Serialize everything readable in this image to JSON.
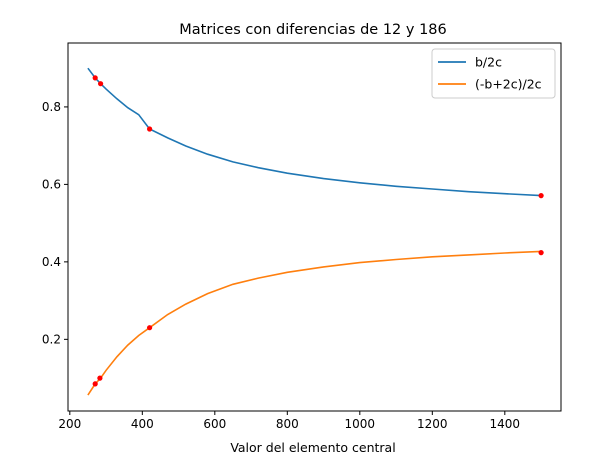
{
  "chart_data": {
    "type": "line",
    "title": "Matrices con diferencias de 12 y 186",
    "xlabel": "Valor del elemento central",
    "ylabel": "",
    "xlim": [
      195,
      1555
    ],
    "ylim": [
      0.015,
      0.965
    ],
    "xticks": [
      200,
      400,
      600,
      800,
      1000,
      1200,
      1400
    ],
    "yticks": [
      0.2,
      0.4,
      0.6,
      0.8
    ],
    "xtick_labels": [
      "200",
      "400",
      "600",
      "800",
      "1000",
      "1200",
      "1400"
    ],
    "ytick_labels": [
      "0.2",
      "0.4",
      "0.6",
      "0.8"
    ],
    "grid": false,
    "legend_position": "top-right",
    "series": [
      {
        "name": "b/2c",
        "color": "#1f77b4",
        "x": [
          250,
          270,
          285,
          300,
          330,
          360,
          390,
          420,
          470,
          520,
          580,
          650,
          720,
          800,
          900,
          1000,
          1100,
          1200,
          1300,
          1400,
          1500
        ],
        "y": [
          0.9,
          0.875,
          0.86,
          0.846,
          0.821,
          0.798,
          0.78,
          0.743,
          0.72,
          0.699,
          0.678,
          0.658,
          0.643,
          0.629,
          0.615,
          0.604,
          0.595,
          0.588,
          0.581,
          0.576,
          0.571
        ]
      },
      {
        "name": "(-b+2c)/2c",
        "color": "#ff7f0e",
        "x": [
          250,
          270,
          285,
          300,
          330,
          360,
          390,
          420,
          470,
          520,
          580,
          650,
          720,
          800,
          900,
          1000,
          1100,
          1200,
          1300,
          1400,
          1500
        ],
        "y": [
          0.056,
          0.085,
          0.1,
          0.12,
          0.155,
          0.185,
          0.21,
          0.23,
          0.264,
          0.291,
          0.318,
          0.342,
          0.358,
          0.373,
          0.387,
          0.398,
          0.406,
          0.413,
          0.418,
          0.423,
          0.427
        ]
      }
    ],
    "highlight_points": {
      "color": "#ff0000",
      "points": [
        [
          270,
          0.875
        ],
        [
          285,
          0.86
        ],
        [
          420,
          0.743
        ],
        [
          1500,
          0.571
        ],
        [
          270,
          0.085
        ],
        [
          283,
          0.1
        ],
        [
          420,
          0.23
        ],
        [
          1500,
          0.424
        ]
      ]
    }
  }
}
